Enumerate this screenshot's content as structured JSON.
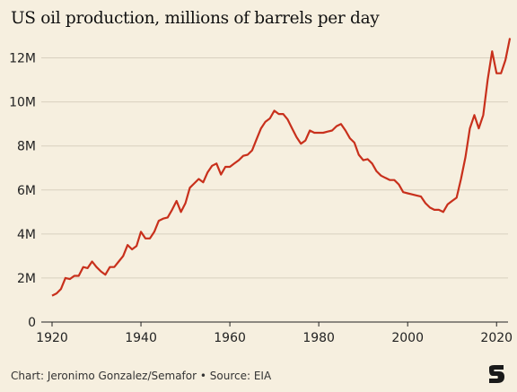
{
  "header": {
    "title": "US oil production, millions of barrels per day"
  },
  "footer": {
    "credit": "Chart: Jeronimo Gonzalez/Semafor • Source: EIA"
  },
  "brand": {
    "logo_icon": "semafor-logo-icon"
  },
  "colors": {
    "line": "#c8301c",
    "background": "#f6efdf",
    "grid": "#d8d0bf"
  },
  "chart_data": {
    "type": "line",
    "title": "US oil production, millions of barrels per day",
    "xlabel": "",
    "ylabel": "",
    "xlim": [
      1920,
      2023
    ],
    "ylim": [
      0,
      13
    ],
    "grid": true,
    "x_ticks": [
      1920,
      1940,
      1960,
      1980,
      2000,
      2020
    ],
    "y_ticks": [
      0,
      2,
      4,
      6,
      8,
      10,
      12
    ],
    "y_tick_labels": [
      "0",
      "2M",
      "4M",
      "6M",
      "8M",
      "10M",
      "12M"
    ],
    "series": [
      {
        "x": [
          1920,
          1921,
          1922,
          1923,
          1924,
          1925,
          1926,
          1927,
          1928,
          1929,
          1930,
          1931,
          1932,
          1933,
          1934,
          1935,
          1936,
          1937,
          1938,
          1939,
          1940,
          1941,
          1942,
          1943,
          1944,
          1945,
          1946,
          1947,
          1948,
          1949,
          1950,
          1951,
          1952,
          1953,
          1954,
          1955,
          1956,
          1957,
          1958,
          1959,
          1960,
          1961,
          1962,
          1963,
          1964,
          1965,
          1966,
          1967,
          1968,
          1969,
          1970,
          1971,
          1972,
          1973,
          1974,
          1975,
          1976,
          1977,
          1978,
          1979,
          1980,
          1981,
          1982,
          1983,
          1984,
          1985,
          1986,
          1987,
          1988,
          1989,
          1990,
          1991,
          1992,
          1993,
          1994,
          1995,
          1996,
          1997,
          1998,
          1999,
          2000,
          2001,
          2002,
          2003,
          2004,
          2005,
          2006,
          2007,
          2008,
          2009,
          2010,
          2011,
          2012,
          2013,
          2014,
          2015,
          2016,
          2017,
          2018,
          2019,
          2020,
          2021,
          2022,
          2023
        ],
        "values": [
          1.2,
          1.3,
          1.5,
          2.0,
          1.95,
          2.1,
          2.1,
          2.5,
          2.45,
          2.75,
          2.5,
          2.3,
          2.15,
          2.5,
          2.5,
          2.75,
          3.0,
          3.5,
          3.3,
          3.45,
          4.1,
          3.8,
          3.8,
          4.1,
          4.6,
          4.7,
          4.75,
          5.1,
          5.5,
          5.0,
          5.4,
          6.1,
          6.3,
          6.5,
          6.35,
          6.8,
          7.1,
          7.2,
          6.7,
          7.05,
          7.05,
          7.2,
          7.35,
          7.55,
          7.6,
          7.8,
          8.3,
          8.8,
          9.1,
          9.25,
          9.6,
          9.45,
          9.45,
          9.2,
          8.8,
          8.4,
          8.1,
          8.25,
          8.7,
          8.6,
          8.6,
          8.6,
          8.65,
          8.7,
          8.9,
          9.0,
          8.7,
          8.35,
          8.15,
          7.6,
          7.35,
          7.4,
          7.2,
          6.85,
          6.65,
          6.55,
          6.45,
          6.45,
          6.25,
          5.9,
          5.85,
          5.8,
          5.75,
          5.7,
          5.4,
          5.2,
          5.1,
          5.1,
          5.0,
          5.35,
          5.5,
          5.65,
          6.5,
          7.5,
          8.8,
          9.4,
          8.8,
          9.4,
          11.0,
          12.3,
          11.3,
          11.3,
          11.9,
          12.9
        ]
      }
    ]
  }
}
